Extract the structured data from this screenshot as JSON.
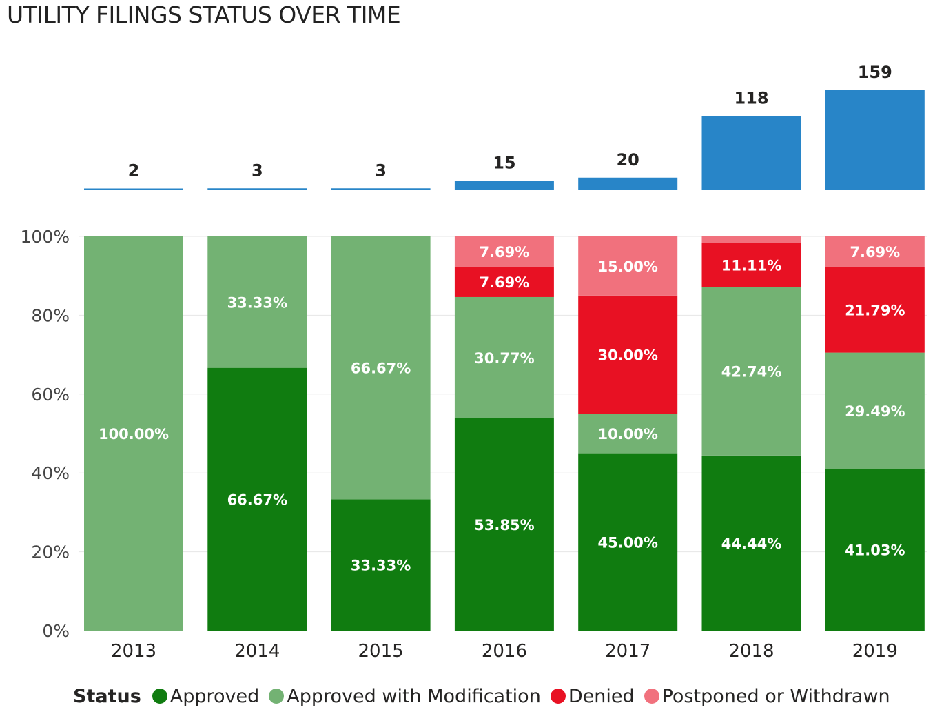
{
  "title": "UTILITY FILINGS STATUS OVER TIME",
  "legend": {
    "title": "Status",
    "items": [
      {
        "label": "Approved",
        "color": "#107c10"
      },
      {
        "label": "Approved with Modification",
        "color": "#73b273"
      },
      {
        "label": "Denied",
        "color": "#e81123"
      },
      {
        "label": "Postponed or Withdrawn",
        "color": "#f1717d"
      }
    ]
  },
  "chart_data": [
    {
      "type": "bar",
      "categories": [
        "2013",
        "2014",
        "2015",
        "2016",
        "2017",
        "2018",
        "2019"
      ],
      "values": [
        2,
        3,
        3,
        15,
        20,
        118,
        159
      ],
      "data_labels": [
        "2",
        "3",
        "3",
        "15",
        "20",
        "118",
        "159"
      ],
      "color": "#2885c8",
      "ylim": [
        0,
        159
      ]
    },
    {
      "type": "bar",
      "stacked": true,
      "normalized": true,
      "categories": [
        "2013",
        "2014",
        "2015",
        "2016",
        "2017",
        "2018",
        "2019"
      ],
      "series": [
        {
          "name": "Approved",
          "color": "#107c10",
          "values": [
            0,
            66.67,
            33.33,
            53.85,
            45.0,
            44.44,
            41.03
          ],
          "labels": [
            "",
            "66.67%",
            "33.33%",
            "53.85%",
            "45.00%",
            "44.44%",
            "41.03%"
          ]
        },
        {
          "name": "Approved with Modification",
          "color": "#73b273",
          "values": [
            100.0,
            33.33,
            66.67,
            30.77,
            10.0,
            42.74,
            29.49
          ],
          "labels": [
            "100.00%",
            "33.33%",
            "66.67%",
            "30.77%",
            "10.00%",
            "42.74%",
            "29.49%"
          ]
        },
        {
          "name": "Denied",
          "color": "#e81123",
          "values": [
            0,
            0,
            0,
            7.69,
            30.0,
            11.11,
            21.79
          ],
          "labels": [
            "",
            "",
            "",
            "7.69%",
            "30.00%",
            "11.11%",
            "21.79%"
          ]
        },
        {
          "name": "Postponed or Withdrawn",
          "color": "#f1717d",
          "values": [
            0,
            0,
            0,
            7.69,
            15.0,
            1.71,
            7.69
          ],
          "labels": [
            "",
            "",
            "",
            "7.69%",
            "15.00%",
            "",
            "7.69%"
          ]
        }
      ],
      "yticks": [
        "0%",
        "20%",
        "40%",
        "60%",
        "80%",
        "100%"
      ],
      "ylim": [
        0,
        100
      ],
      "grid": true,
      "legend_position": "bottom"
    }
  ]
}
